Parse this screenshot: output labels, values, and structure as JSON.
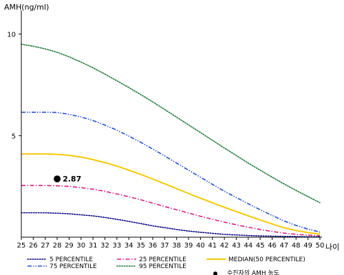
{
  "chart_data": {
    "type": "line",
    "ylabel": "AMH(ng/ml)",
    "xlabel": "나이",
    "x": [
      25,
      26,
      27,
      28,
      29,
      30,
      31,
      32,
      33,
      34,
      35,
      36,
      37,
      38,
      39,
      40,
      41,
      42,
      43,
      44,
      45,
      46,
      47,
      48,
      49,
      50
    ],
    "xlim": [
      25,
      50
    ],
    "ylim": [
      0,
      11
    ],
    "yticks": [
      5,
      10
    ],
    "grid": false,
    "legend_position": "bottom",
    "series": [
      {
        "name": "5 PERCENTILE",
        "color": "#00007f",
        "dash": "dotted",
        "values": [
          1.2,
          1.2,
          1.2,
          1.18,
          1.15,
          1.1,
          1.05,
          0.97,
          0.88,
          0.78,
          0.67,
          0.56,
          0.47,
          0.38,
          0.3,
          0.24,
          0.19,
          0.14,
          0.11,
          0.08,
          0.06,
          0.05,
          0.04,
          0.03,
          0.02,
          0.02
        ]
      },
      {
        "name": "25 PERCENTILE",
        "color": "#e0187f",
        "dash": "dashdot",
        "values": [
          2.55,
          2.55,
          2.55,
          2.53,
          2.5,
          2.44,
          2.36,
          2.26,
          2.13,
          1.99,
          1.84,
          1.68,
          1.51,
          1.35,
          1.19,
          1.03,
          0.88,
          0.74,
          0.61,
          0.49,
          0.38,
          0.28,
          0.2,
          0.14,
          0.1,
          0.07
        ]
      },
      {
        "name": "MEDIAN(50 PERCENTILE)",
        "color": "#f5c800",
        "dash": "solid",
        "values": [
          4.1,
          4.1,
          4.1,
          4.08,
          4.03,
          3.94,
          3.82,
          3.67,
          3.5,
          3.3,
          3.09,
          2.86,
          2.63,
          2.39,
          2.15,
          1.92,
          1.69,
          1.47,
          1.26,
          1.05,
          0.85,
          0.65,
          0.46,
          0.33,
          0.23,
          0.15
        ]
      },
      {
        "name": "75 PERCENTILE",
        "color": "#1f4fcf",
        "dash": "dashdotdot",
        "values": [
          6.15,
          6.15,
          6.15,
          6.14,
          6.05,
          5.92,
          5.74,
          5.52,
          5.27,
          4.98,
          4.67,
          4.34,
          4.0,
          3.65,
          3.3,
          2.95,
          2.6,
          2.26,
          1.95,
          1.65,
          1.35,
          1.07,
          0.8,
          0.58,
          0.4,
          0.25
        ]
      },
      {
        "name": "95 PERCENTILE",
        "color": "#1e7a3a",
        "dash": "dotted",
        "values": [
          9.5,
          9.4,
          9.27,
          9.1,
          8.88,
          8.62,
          8.34,
          8.03,
          7.7,
          7.37,
          7.02,
          6.66,
          6.29,
          5.91,
          5.53,
          5.15,
          4.77,
          4.39,
          4.02,
          3.65,
          3.3,
          2.95,
          2.62,
          2.3,
          2.0,
          1.7
        ]
      }
    ],
    "marker": {
      "label": "수진자의 AMH 농도",
      "x": 28,
      "y": 2.87,
      "value_label": "2.87",
      "color": "#000000"
    }
  }
}
